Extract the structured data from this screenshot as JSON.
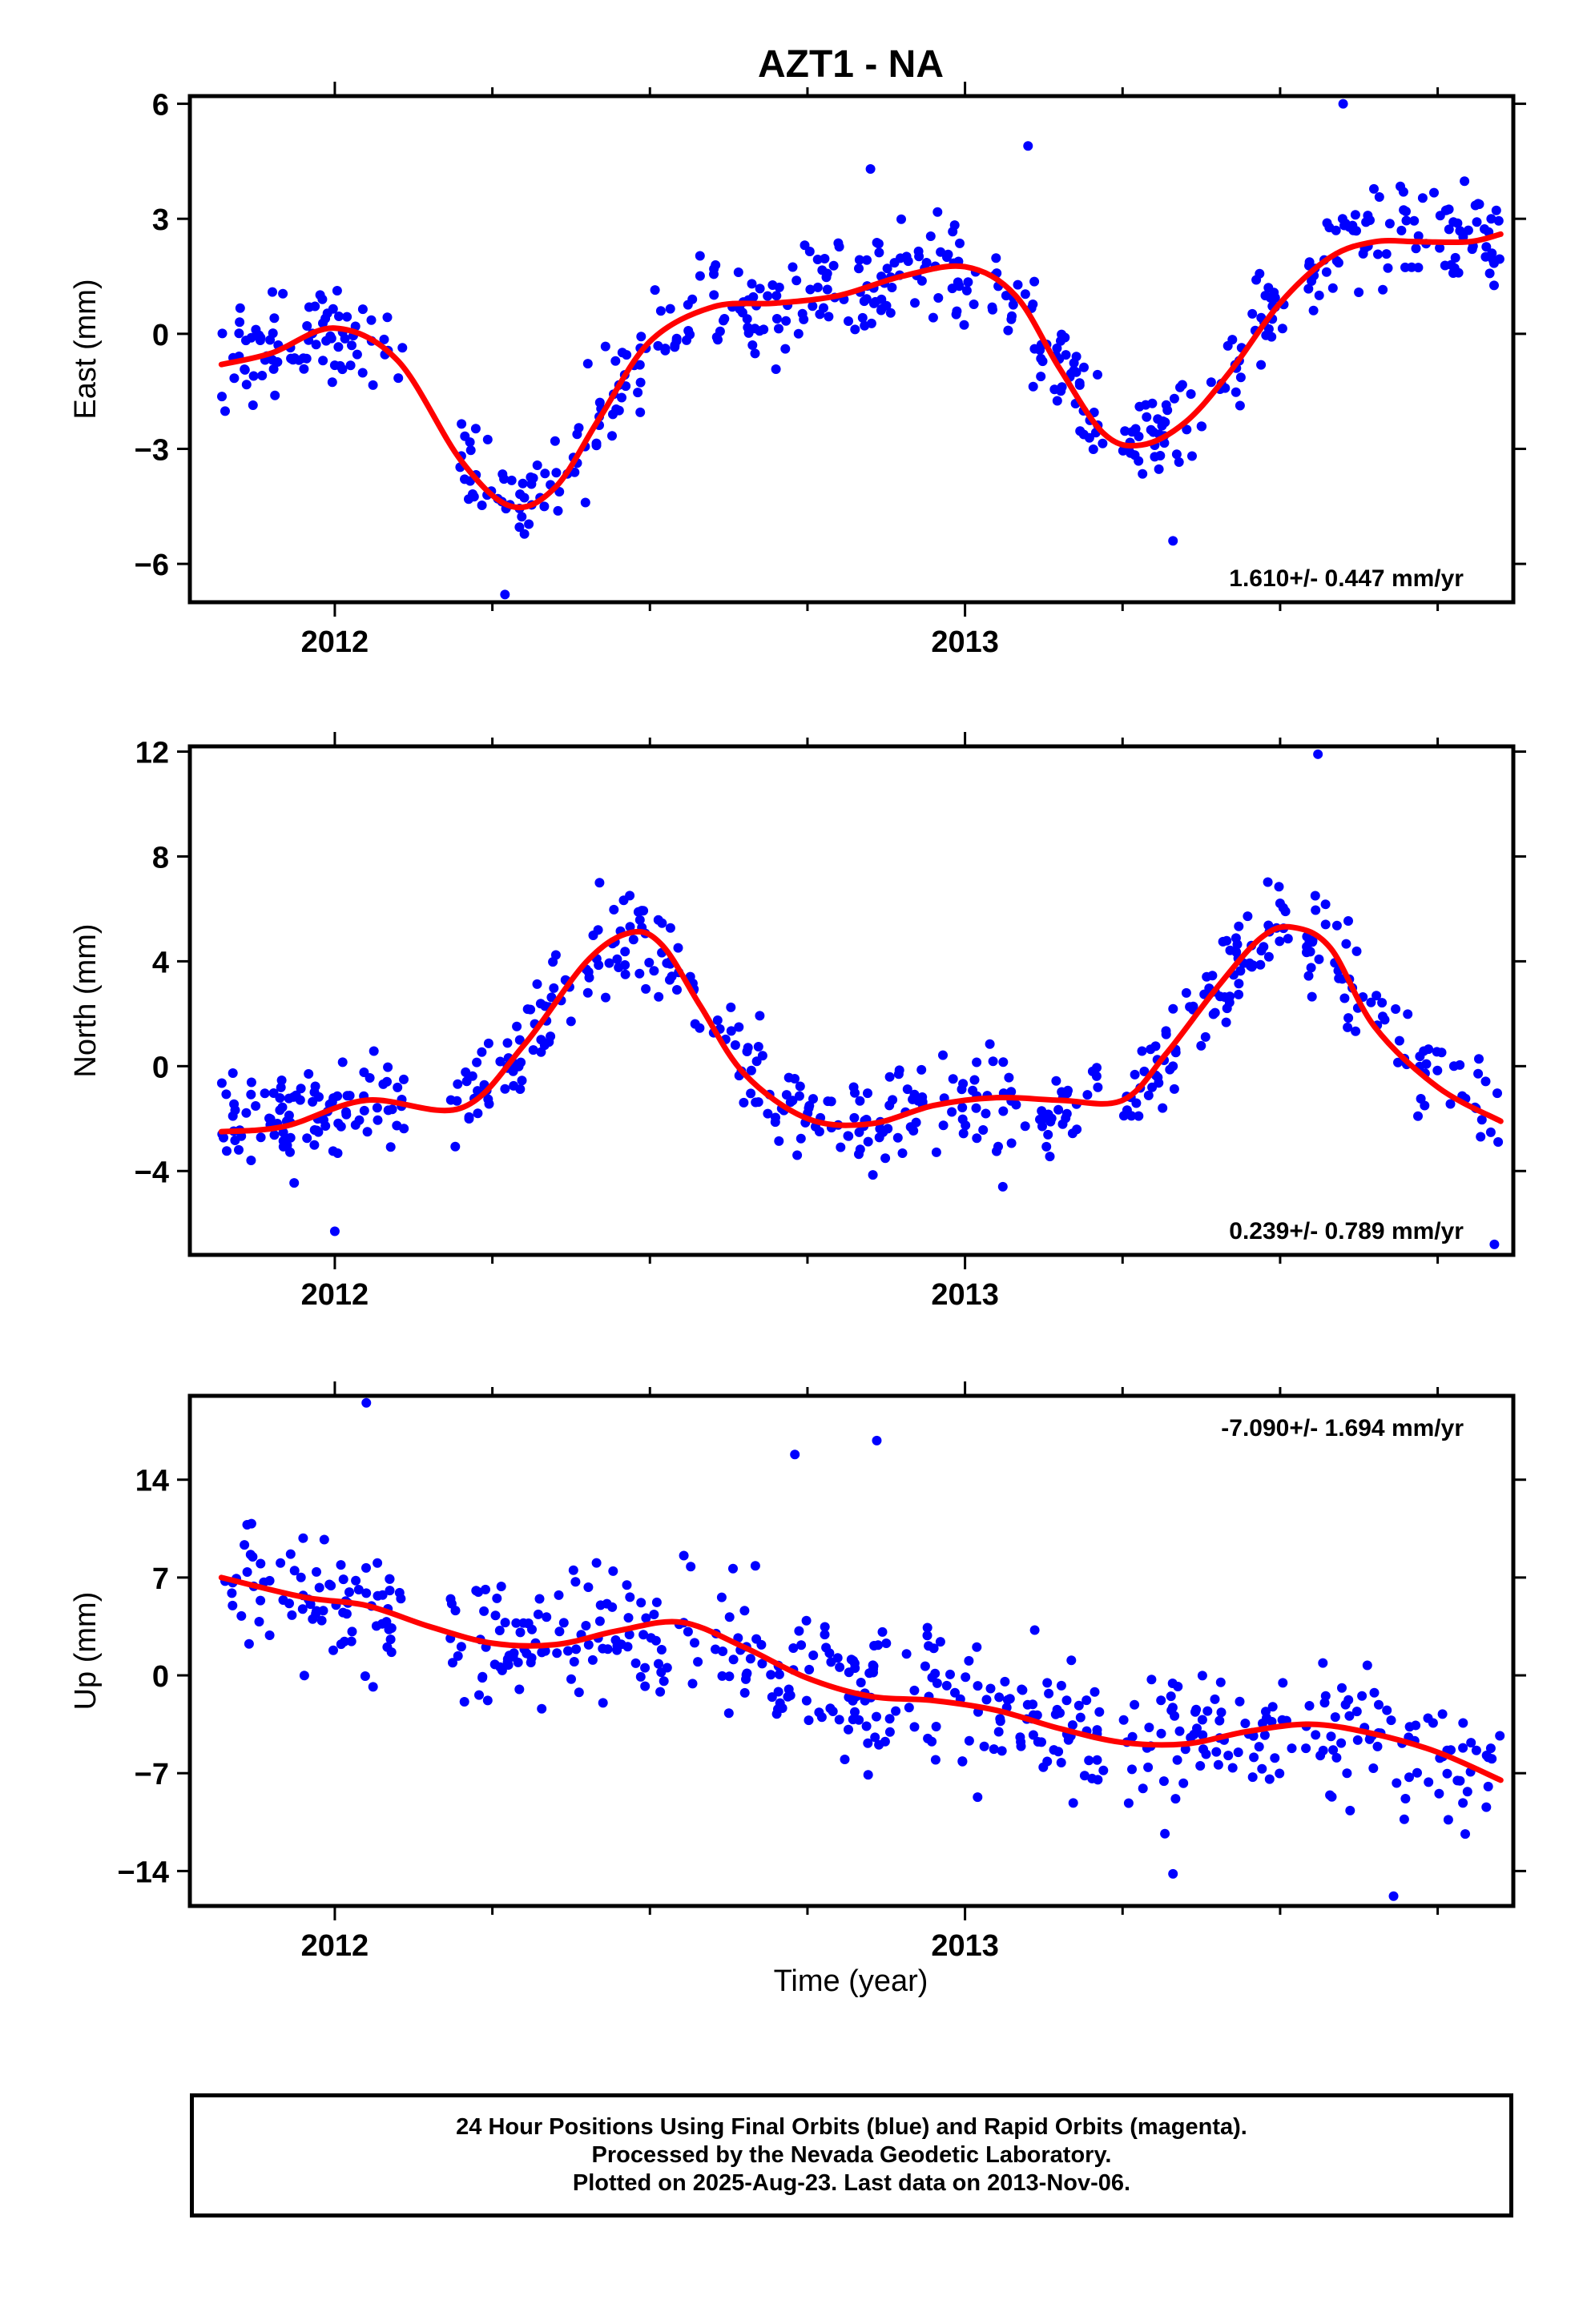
{
  "title": "AZT1 - NA",
  "xlabel": "Time (year)",
  "colors": {
    "points": "#0000ff",
    "fit": "#ff0000",
    "frame": "#000000"
  },
  "footer": {
    "line1": "24 Hour Positions Using Final Orbits (blue) and Rapid Orbits (magenta).",
    "line2": "Processed by the Nevada Geodetic Laboratory.",
    "line3": "Plotted on 2025-Aug-23. Last data on 2013-Nov-06."
  },
  "chart_data": [
    {
      "type": "scatter",
      "ylabel": "East (mm)",
      "rate": "1.610+/- 0.447 mm/yr",
      "rate_position": "bottom-right",
      "xlim": [
        2011.77,
        2013.87
      ],
      "ylim": [
        -7.0,
        6.2
      ],
      "yticks": [
        -6,
        -3,
        0,
        3,
        6
      ],
      "ytick_labels": [
        "−6",
        "−3",
        "0",
        "3",
        "6"
      ],
      "xticks": [
        2012,
        2013
      ],
      "xtick_labels": [
        "2012",
        "2013"
      ],
      "fit": {
        "name": "",
        "x": [
          2011.82,
          2011.9,
          2012.0,
          2012.1,
          2012.2,
          2012.28,
          2012.35,
          2012.42,
          2012.5,
          2012.6,
          2012.7,
          2012.8,
          2012.9,
          2013.0,
          2013.08,
          2013.15,
          2013.22,
          2013.28,
          2013.35,
          2013.42,
          2013.5,
          2013.58,
          2013.65,
          2013.72,
          2013.8,
          2013.85
        ],
        "y": [
          -0.8,
          -0.5,
          0.15,
          -0.7,
          -3.3,
          -4.5,
          -4.0,
          -2.2,
          -0.2,
          0.7,
          0.8,
          1.0,
          1.5,
          1.75,
          1.0,
          -0.9,
          -2.6,
          -2.9,
          -2.3,
          -1.0,
          0.8,
          2.0,
          2.4,
          2.4,
          2.4,
          2.6
        ]
      },
      "points": {
        "name": "",
        "n": 560,
        "seed": 11,
        "noise": 0.95,
        "outliers": [
          [
            2013.6,
            6.0
          ],
          [
            2013.1,
            4.9
          ],
          [
            2012.85,
            4.3
          ],
          [
            2012.27,
            -6.8
          ],
          [
            2013.33,
            -5.4
          ]
        ]
      }
    },
    {
      "type": "scatter",
      "ylabel": "North (mm)",
      "rate": "0.239+/- 0.789 mm/yr",
      "rate_position": "bottom-right",
      "xlim": [
        2011.77,
        2013.87
      ],
      "ylim": [
        -7.2,
        12.2
      ],
      "yticks": [
        -4,
        0,
        4,
        8,
        12
      ],
      "ytick_labels": [
        "−4",
        "0",
        "4",
        "8",
        "12"
      ],
      "xticks": [
        2012,
        2013
      ],
      "xtick_labels": [
        "2012",
        "2013"
      ],
      "fit": {
        "name": "",
        "x": [
          2011.82,
          2011.92,
          2012.05,
          2012.2,
          2012.3,
          2012.4,
          2012.47,
          2012.52,
          2012.58,
          2012.65,
          2012.75,
          2012.85,
          2012.95,
          2013.05,
          2013.15,
          2013.25,
          2013.32,
          2013.4,
          2013.47,
          2013.52,
          2013.58,
          2013.65,
          2013.75,
          2013.85
        ],
        "y": [
          -2.5,
          -2.3,
          -1.3,
          -1.6,
          0.8,
          4.0,
          5.1,
          4.6,
          2.3,
          -0.3,
          -2.0,
          -2.2,
          -1.5,
          -1.2,
          -1.3,
          -1.3,
          0.5,
          3.0,
          4.9,
          5.3,
          4.5,
          1.5,
          -0.8,
          -2.1
        ]
      },
      "points": {
        "name": "",
        "n": 560,
        "seed": 23,
        "noise": 1.3,
        "outliers": [
          [
            2013.56,
            11.9
          ],
          [
            2012.0,
            -6.3
          ],
          [
            2013.84,
            -6.8
          ],
          [
            2013.06,
            -4.6
          ]
        ]
      }
    },
    {
      "type": "scatter",
      "ylabel": "Up (mm)",
      "rate": "-7.090+/- 1.694 mm/yr",
      "rate_position": "top-right",
      "xlim": [
        2011.77,
        2013.87
      ],
      "ylim": [
        -16.5,
        20.0
      ],
      "yticks": [
        -14,
        -7,
        0,
        7,
        14
      ],
      "ytick_labels": [
        "−14",
        "−7",
        "0",
        "7",
        "14"
      ],
      "xticks": [
        2012,
        2013
      ],
      "xtick_labels": [
        "2012",
        "2013"
      ],
      "fit": {
        "name": "",
        "x": [
          2011.82,
          2011.95,
          2012.05,
          2012.15,
          2012.25,
          2012.35,
          2012.45,
          2012.55,
          2012.65,
          2012.75,
          2012.85,
          2012.95,
          2013.05,
          2013.15,
          2013.25,
          2013.35,
          2013.45,
          2013.55,
          2013.65,
          2013.75,
          2013.85
        ],
        "y": [
          7.0,
          5.6,
          5.0,
          3.5,
          2.3,
          2.2,
          3.2,
          3.8,
          2.0,
          -0.2,
          -1.5,
          -1.8,
          -2.5,
          -3.8,
          -4.8,
          -4.9,
          -4.0,
          -3.5,
          -4.2,
          -5.5,
          -7.5
        ]
      },
      "points": {
        "name": "",
        "n": 560,
        "seed": 37,
        "noise": 3.4,
        "outliers": [
          [
            2012.05,
            19.5
          ],
          [
            2012.86,
            16.8
          ],
          [
            2012.73,
            15.8
          ],
          [
            2013.68,
            -15.8
          ],
          [
            2013.33,
            -14.2
          ]
        ]
      }
    }
  ]
}
